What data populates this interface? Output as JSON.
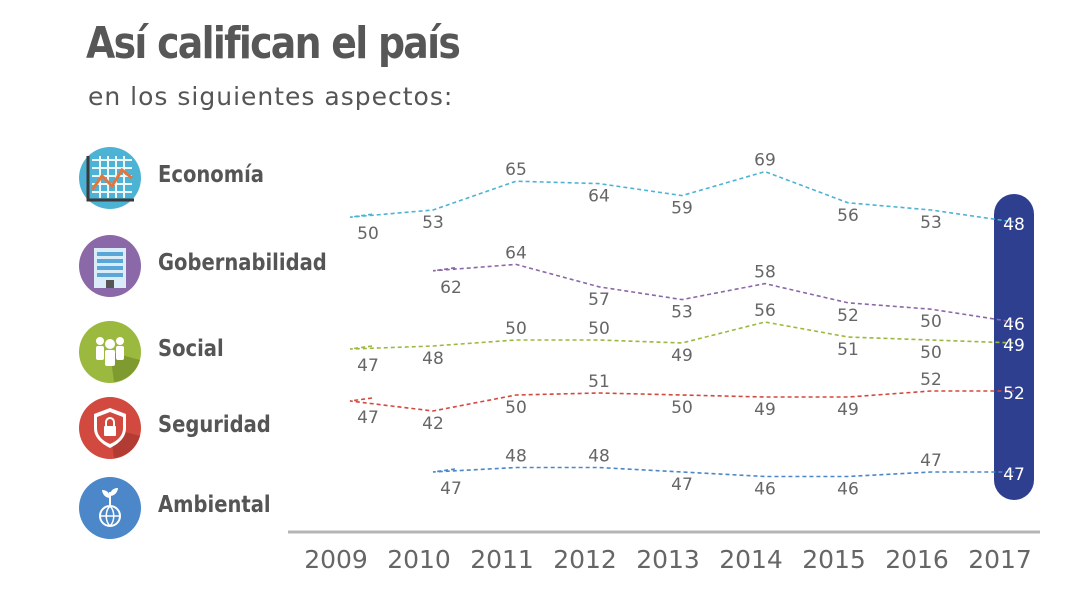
{
  "title": "Así califican el país",
  "subtitle": "en los siguientes aspectos:",
  "categories": [
    {
      "label": "Economía",
      "icon": "economy-chart-icon",
      "color": "#4db3d5"
    },
    {
      "label": "Gobernabilidad",
      "icon": "government-building-icon",
      "color": "#8b68a8"
    },
    {
      "label": "Social",
      "icon": "people-group-icon",
      "color": "#9bb93f"
    },
    {
      "label": "Seguridad",
      "icon": "security-shield-lock-icon",
      "color": "#d2493f"
    },
    {
      "label": "Ambiental",
      "icon": "plant-globe-icon",
      "color": "#4b87c9"
    }
  ],
  "chart_data": {
    "type": "line",
    "x": [
      "2009",
      "2010",
      "2011",
      "2012",
      "2013",
      "2014",
      "2015",
      "2016",
      "2017"
    ],
    "series": [
      {
        "name": "Economía",
        "color": "#4db3d5",
        "values": [
          50,
          53,
          65,
          64,
          59,
          69,
          56,
          53,
          48
        ]
      },
      {
        "name": "Gobernabilidad",
        "color": "#8b68a8",
        "values": [
          null,
          62,
          64,
          57,
          53,
          58,
          52,
          50,
          46
        ]
      },
      {
        "name": "Social",
        "color": "#9bb93f",
        "values": [
          47,
          48,
          50,
          50,
          49,
          56,
          51,
          50,
          49
        ]
      },
      {
        "name": "Seguridad",
        "color": "#d2493f",
        "values": [
          47,
          42,
          50,
          51,
          50,
          49,
          49,
          52,
          52
        ]
      },
      {
        "name": "Ambiental",
        "color": "#4b87c9",
        "values": [
          null,
          47,
          48,
          48,
          47,
          46,
          46,
          47,
          47
        ]
      }
    ],
    "highlight": {
      "x": "2017",
      "color": "#2e3f8f"
    }
  }
}
